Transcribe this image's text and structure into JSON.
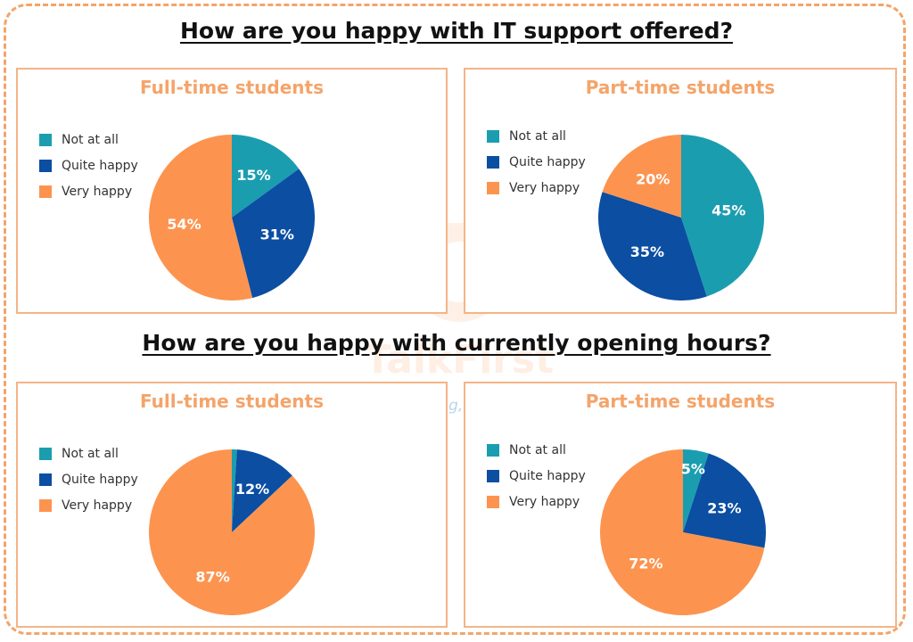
{
  "sections": [
    {
      "title": "How are you happy with IT support offered?"
    },
    {
      "title": "How are you happy with currently opening hours?"
    }
  ],
  "legend": [
    "Not at all",
    "Quite happy",
    "Very happy"
  ],
  "colors": {
    "not_at_all": "#1b9db0",
    "quite_happy": "#0b4ea2",
    "very_happy": "#fc9450",
    "frame": "#f4a46a",
    "panel_title": "#f4a46a"
  },
  "watermark": {
    "brand": "TalkFirst",
    "tagline": "Enjoy learning, enjoy English"
  },
  "chart_data": [
    {
      "type": "pie",
      "section": "How are you happy with IT support offered?",
      "title": "Full-time students",
      "labels": [
        "Not at all",
        "Quite happy",
        "Very happy"
      ],
      "values": [
        15,
        31,
        54
      ],
      "value_labels": [
        "15%",
        "31%",
        "54%"
      ],
      "legend": "left"
    },
    {
      "type": "pie",
      "section": "How are you happy with IT support offered?",
      "title": "Part-time students",
      "labels": [
        "Not at all",
        "Quite happy",
        "Very happy"
      ],
      "values": [
        45,
        35,
        20
      ],
      "value_labels": [
        "45%",
        "35%",
        "20%"
      ],
      "legend": "left"
    },
    {
      "type": "pie",
      "section": "How are you happy with currently opening hours?",
      "title": "Full-time students",
      "labels": [
        "Not at all",
        "Quite happy",
        "Very happy"
      ],
      "values": [
        1,
        12,
        87
      ],
      "value_labels": [
        "",
        "12%",
        "87%"
      ],
      "legend": "left"
    },
    {
      "type": "pie",
      "section": "How are you happy with currently opening hours?",
      "title": "Part-time students",
      "labels": [
        "Not at all",
        "Quite happy",
        "Very happy"
      ],
      "values": [
        5,
        23,
        72
      ],
      "value_labels": [
        "5%",
        "23%",
        "72%"
      ],
      "legend": "left"
    }
  ]
}
